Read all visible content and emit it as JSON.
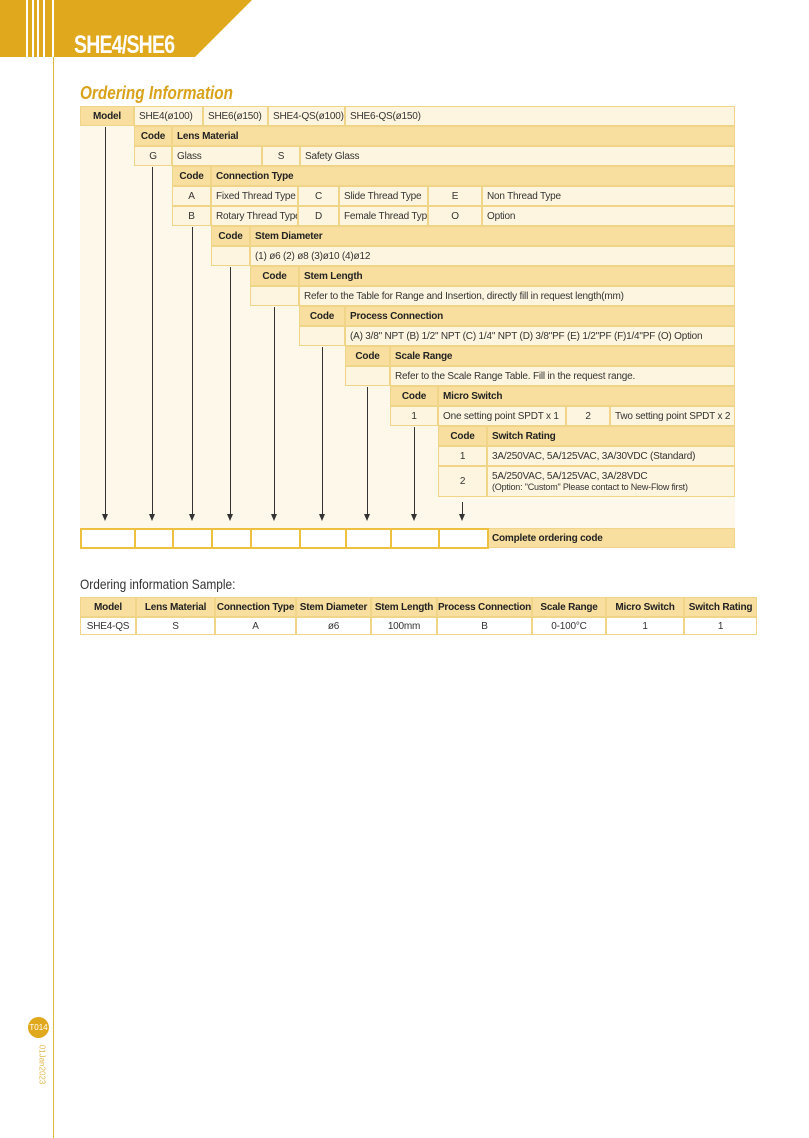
{
  "header": {
    "title": "SHE4/SHE6",
    "accent": "#e0a81c"
  },
  "section_title": "Ordering Information",
  "model": {
    "label": "Model",
    "options": [
      "SHE4(ø100)",
      "SHE6(ø150)",
      "SHE4-QS(ø100)",
      "SHE6-QS(ø150)"
    ]
  },
  "lens": {
    "code": "Code",
    "title": "Lens Material",
    "items": [
      "G",
      "Glass",
      "S",
      "Safety Glass"
    ]
  },
  "connection": {
    "code": "Code",
    "title": "Connection Type",
    "row1": [
      "A",
      "Fixed Thread Type",
      "C",
      "Slide Thread Type",
      "E",
      "Non Thread Type"
    ],
    "row2": [
      "B",
      "Rotary Thread Type",
      "D",
      "Female Thread Type",
      "O",
      "Option"
    ]
  },
  "stem_diameter": {
    "code": "Code",
    "title": "Stem Diameter",
    "value": "(1) ø6  (2) ø8  (3)ø10  (4)ø12"
  },
  "stem_length": {
    "code": "Code",
    "title": "Stem Length",
    "value": "Refer to the Table for Range and Insertion, directly fill in request length(mm)"
  },
  "process": {
    "code": "Code",
    "title": "Process Connection",
    "value": "(A) 3/8\" NPT  (B) 1/2\" NPT  (C) 1/4\" NPT  (D) 3/8\"PF  (E) 1/2\"PF  (F)1/4\"PF  (O) Option"
  },
  "scale": {
    "code": "Code",
    "title": "Scale Range",
    "value": "Refer to the Scale Range Table. Fill in the request range."
  },
  "micro": {
    "code": "Code",
    "title": "Micro Switch",
    "items": [
      "1",
      "One setting point SPDT x 1",
      "2",
      "Two setting point SPDT x 2"
    ]
  },
  "rating": {
    "code": "Code",
    "title": "Switch Rating",
    "r1": [
      "1",
      "3A/250VAC, 5A/125VAC, 3A/30VDC (Standard)"
    ],
    "r2": [
      "2",
      "5A/250VAC, 5A/125VAC, 3A/28VDC",
      "(Option: \"Custom\" Please contact to New-Flow first)"
    ]
  },
  "complete_label": "Complete ordering code",
  "sample": {
    "title": "Ordering information Sample:",
    "headers": [
      "Model",
      "Lens Material",
      "Connection Type",
      "Stem Diameter",
      "Stem Length",
      "Process Connection",
      "Scale Range",
      "Micro Switch",
      "Switch Rating"
    ],
    "values": [
      "SHE4-QS",
      "S",
      "A",
      "ø6",
      "100mm",
      "B",
      "0-100°C",
      "1",
      "1"
    ]
  },
  "footer": {
    "page": "T014",
    "date": "01Jan2023"
  }
}
